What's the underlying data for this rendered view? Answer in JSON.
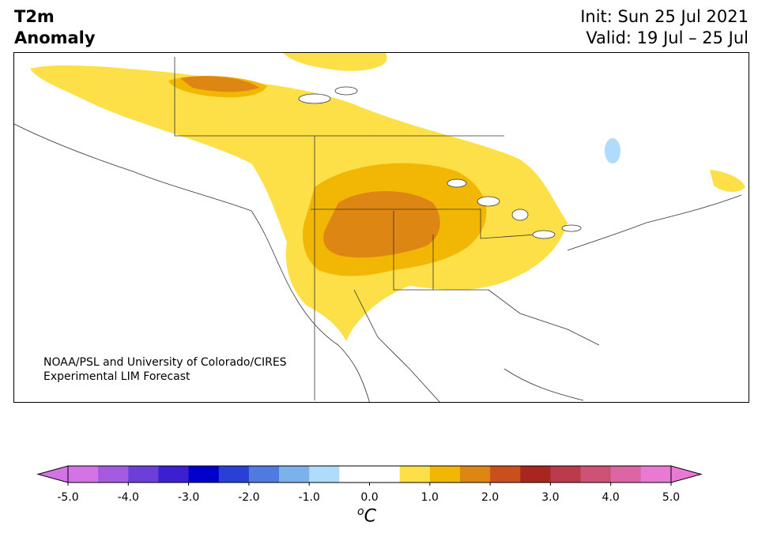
{
  "title": {
    "line1": "T2m",
    "line2": "Anomaly"
  },
  "init": "Init: Sun 25 Jul 2021",
  "valid": "Valid: 19 Jul – 25 Jul",
  "credit": {
    "line1": "NOAA/PSL and University of Colorado/CIRES",
    "line2": "Experimental LIM Forecast"
  },
  "colorbar": {
    "unit_base": "C",
    "unit_sup": "o",
    "tick_labels": [
      "-5.0",
      "-4.0",
      "-3.0",
      "-2.0",
      "-1.0",
      "0.0",
      "1.0",
      "2.0",
      "3.0",
      "4.0",
      "5.0"
    ],
    "colors": [
      "#d473e6",
      "#a45be0",
      "#6c3fd9",
      "#3b1fd1",
      "#0000cc",
      "#2a3fd6",
      "#4f7ae0",
      "#7bb2ec",
      "#aedcfa",
      "#ffffff",
      "#ffffff",
      "#fde047",
      "#f2b705",
      "#de8614",
      "#c9501c",
      "#a8261f",
      "#bb3a4c",
      "#cc5276",
      "#dc66a4",
      "#e87ad4"
    ],
    "extend_low": "#d473e6",
    "extend_high": "#e87ad4"
  },
  "map": {
    "anomaly_colors": {
      "warm1": "#fde047",
      "warm2": "#f2b705",
      "warm3": "#de8614",
      "cool1": "#aedcfa"
    }
  }
}
